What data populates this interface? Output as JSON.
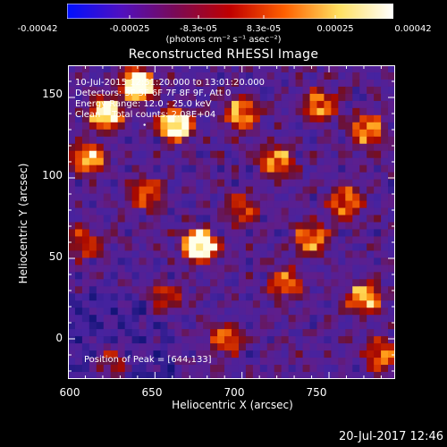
{
  "colorbar": {
    "ticks": [
      "-0.00042",
      "-0.00025",
      "-8.3e-05",
      "8.3e-05",
      "0.00025",
      "0.00042"
    ],
    "unit": "(photons cm⁻² s⁻¹ asec⁻²)",
    "range": [
      -0.00042,
      0.00042
    ],
    "colors": [
      "#0010ff",
      "#5010c0",
      "#7a0a55",
      "#c00000",
      "#ff6000",
      "#ffe060",
      "#ffffff"
    ]
  },
  "chart_data": {
    "type": "heatmap",
    "title": "Reconstructed RHESSI Image",
    "xlabel": "Heliocentric X (arcsec)",
    "ylabel": "Heliocentric Y (arcsec)",
    "xlim": [
      600,
      788
    ],
    "ylim": [
      -25,
      170
    ],
    "xticks": [
      "600",
      "650",
      "700",
      "750"
    ],
    "yticks": [
      "0",
      "50",
      "100",
      "150"
    ],
    "peak_position": [
      644,
      133
    ],
    "annotations": [
      "10-Jul-2015 12:51:20.000 to 13:01:20.000",
      "Detectors: 3F 5F 6F 7F 8F 9F, Att 0",
      "Energy Range: 12.0 - 25.0 keV",
      "Clean    Total counts: 2.08E+04"
    ],
    "peak_label": "Position of Peak = [644,133]",
    "bright_sources": [
      {
        "x": 640,
        "y": 158,
        "intensity": 0.95
      },
      {
        "x": 622,
        "y": 140,
        "intensity": 0.8
      },
      {
        "x": 662,
        "y": 133,
        "intensity": 0.85
      },
      {
        "x": 676,
        "y": 58,
        "intensity": 0.9
      },
      {
        "x": 612,
        "y": 112,
        "intensity": 0.65
      },
      {
        "x": 700,
        "y": 140,
        "intensity": 0.6
      },
      {
        "x": 720,
        "y": 110,
        "intensity": 0.55
      },
      {
        "x": 745,
        "y": 145,
        "intensity": 0.55
      },
      {
        "x": 772,
        "y": 130,
        "intensity": 0.6
      },
      {
        "x": 770,
        "y": 25,
        "intensity": 0.6
      },
      {
        "x": 740,
        "y": 62,
        "intensity": 0.5
      },
      {
        "x": 655,
        "y": 25,
        "intensity": 0.45
      },
      {
        "x": 690,
        "y": 0,
        "intensity": 0.45
      },
      {
        "x": 725,
        "y": 35,
        "intensity": 0.45
      },
      {
        "x": 760,
        "y": 85,
        "intensity": 0.5
      },
      {
        "x": 645,
        "y": 90,
        "intensity": 0.45
      },
      {
        "x": 700,
        "y": 80,
        "intensity": 0.4
      },
      {
        "x": 610,
        "y": 60,
        "intensity": 0.4
      },
      {
        "x": 625,
        "y": -15,
        "intensity": 0.4
      },
      {
        "x": 780,
        "y": -10,
        "intensity": 0.5
      }
    ]
  },
  "timestamp": "20-Jul-2017 12:46"
}
